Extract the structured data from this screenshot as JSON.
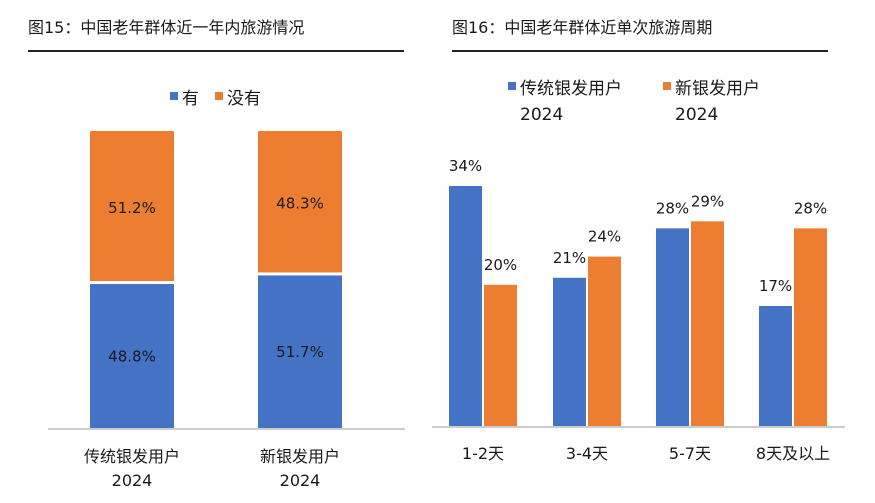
{
  "titles": {
    "left": "图15：中国老年群体近一年内旅游情况",
    "right": "图16：中国老年群体近单次旅游周期"
  },
  "chart_data": [
    {
      "type": "bar",
      "stacked": true,
      "categories": [
        "传统银发用户|2024",
        "新银发用户|2024"
      ],
      "series": [
        {
          "name": "有",
          "values": [
            48.8,
            51.7
          ],
          "labels": [
            "48.8%",
            "51.7%"
          ],
          "color": "#4472C4"
        },
        {
          "name": "没有",
          "values": [
            51.2,
            48.3
          ],
          "labels": [
            "51.2%",
            "48.3%"
          ],
          "color": "#ED7D31"
        }
      ],
      "ylim": [
        0,
        100
      ],
      "legend": "top-center",
      "grid": false
    },
    {
      "type": "bar",
      "categories": [
        "1-2天",
        "3-4天",
        "5-7天",
        "8天及以上"
      ],
      "series": [
        {
          "name": "传统银发用户|2024",
          "values": [
            34,
            21,
            28,
            17
          ],
          "labels": [
            "34%",
            "21%",
            "28%",
            "17%"
          ],
          "color": "#4472C4"
        },
        {
          "name": "新银发用户|2024",
          "values": [
            20,
            24,
            29,
            28
          ],
          "labels": [
            "20%",
            "24%",
            "29%",
            "28%"
          ],
          "color": "#ED7D31"
        }
      ],
      "ylim": [
        0,
        40
      ],
      "legend": "top-center",
      "grid": false
    }
  ]
}
